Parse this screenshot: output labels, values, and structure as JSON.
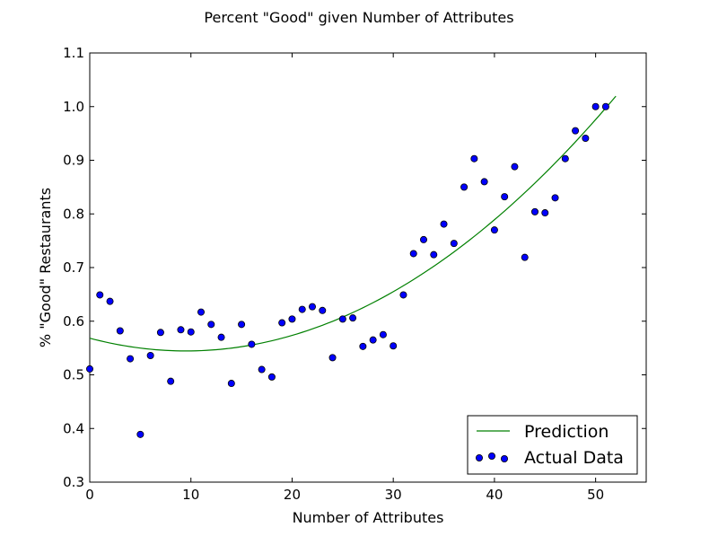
{
  "chart_data": {
    "type": "scatter",
    "title": "Percent \"Good\" given Number of Attributes",
    "xlabel": "Number of Attributes",
    "ylabel": "% \"Good\" Restaurants",
    "xlim": [
      0,
      55
    ],
    "ylim": [
      0.3,
      1.1
    ],
    "x_ticks": [
      0,
      10,
      20,
      30,
      40,
      50
    ],
    "y_ticks": [
      0.3,
      0.4,
      0.5,
      0.6,
      0.7,
      0.8,
      0.9,
      1.0,
      1.1
    ],
    "grid": false,
    "legend_position": "lower-right",
    "colors": {
      "prediction": "#008000",
      "actual_fill": "#0000ff",
      "actual_edge": "#000000"
    },
    "series": [
      {
        "name": "Prediction",
        "kind": "line",
        "quadratic_coefficients": {
          "a": 0.000263,
          "b": -0.005,
          "c": 0.5683
        },
        "x_range": [
          0,
          52
        ]
      },
      {
        "name": "Actual Data",
        "kind": "scatter",
        "points": [
          [
            0,
            0.511
          ],
          [
            1,
            0.649
          ],
          [
            2,
            0.637
          ],
          [
            3,
            0.582
          ],
          [
            4,
            0.53
          ],
          [
            5,
            0.389
          ],
          [
            6,
            0.536
          ],
          [
            7,
            0.579
          ],
          [
            8,
            0.488
          ],
          [
            9,
            0.584
          ],
          [
            10,
            0.58
          ],
          [
            11,
            0.617
          ],
          [
            12,
            0.594
          ],
          [
            13,
            0.57
          ],
          [
            14,
            0.484
          ],
          [
            15,
            0.594
          ],
          [
            16,
            0.557
          ],
          [
            17,
            0.51
          ],
          [
            18,
            0.496
          ],
          [
            19,
            0.597
          ],
          [
            20,
            0.604
          ],
          [
            21,
            0.622
          ],
          [
            22,
            0.627
          ],
          [
            23,
            0.62
          ],
          [
            24,
            0.532
          ],
          [
            25,
            0.604
          ],
          [
            26,
            0.606
          ],
          [
            27,
            0.553
          ],
          [
            28,
            0.565
          ],
          [
            29,
            0.575
          ],
          [
            30,
            0.554
          ],
          [
            31,
            0.649
          ],
          [
            32,
            0.726
          ],
          [
            33,
            0.752
          ],
          [
            34,
            0.724
          ],
          [
            35,
            0.781
          ],
          [
            36,
            0.745
          ],
          [
            37,
            0.85
          ],
          [
            38,
            0.903
          ],
          [
            39,
            0.86
          ],
          [
            40,
            0.77
          ],
          [
            41,
            0.832
          ],
          [
            42,
            0.888
          ],
          [
            43,
            0.719
          ],
          [
            44,
            0.804
          ],
          [
            45,
            0.802
          ],
          [
            46,
            0.83
          ],
          [
            47,
            0.903
          ],
          [
            48,
            0.955
          ],
          [
            49,
            0.941
          ],
          [
            50,
            1.0
          ],
          [
            51,
            1.0
          ]
        ]
      }
    ]
  }
}
